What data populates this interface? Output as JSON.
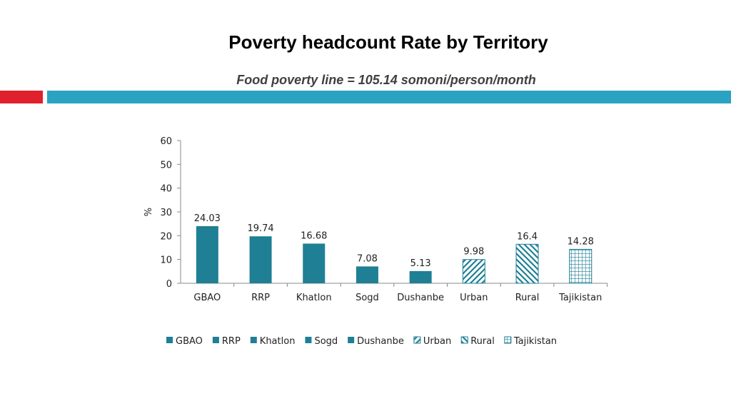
{
  "header": {
    "title": "Poverty headcount Rate by Territory",
    "subtitle": "Food poverty line = 105.14 somoni/person/month"
  },
  "colors": {
    "accent_red": "#e0202c",
    "accent_blue": "#2aa3c2",
    "bar_fill": "#1f7f95",
    "hatch": "#1f7f95"
  },
  "chart_data": {
    "type": "bar",
    "title": "Poverty headcount Rate by Territory",
    "xlabel": "",
    "ylabel": "%",
    "ylim": [
      0,
      60
    ],
    "yticks": [
      0,
      10,
      20,
      30,
      40,
      50,
      60
    ],
    "grid": false,
    "legend_position": "bottom",
    "categories": [
      "GBAO",
      "RRP",
      "Khatlon",
      "Sogd",
      "Dushanbe",
      "Urban",
      "Rural",
      "Tajikistan"
    ],
    "values": [
      24.03,
      19.74,
      16.68,
      7.08,
      5.13,
      9.98,
      16.4,
      14.28
    ],
    "value_labels": [
      "24.03",
      "19.74",
      "16.68",
      "7.08",
      "5.13",
      "9.98",
      "16.4",
      "14.28"
    ],
    "patterns": [
      "solid",
      "solid",
      "solid",
      "solid",
      "solid",
      "diag-up",
      "diag-down",
      "grid"
    ]
  }
}
